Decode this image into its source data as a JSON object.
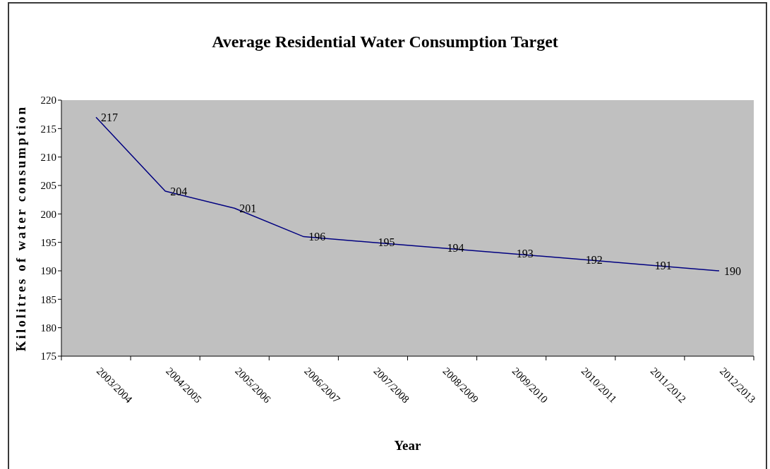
{
  "chart_data": {
    "type": "line",
    "title": "Average Residential Water Consumption Target",
    "xlabel": "Year",
    "ylabel": "Kilolitres of water consumption",
    "categories": [
      "2003/2004",
      "2004/2005",
      "2005/2006",
      "2006/2007",
      "2007/2008",
      "2008/2009",
      "2009/2010",
      "2010/2011",
      "2011/2012",
      "2012/2013"
    ],
    "values": [
      217,
      204,
      201,
      196,
      195,
      194,
      193,
      192,
      191,
      190
    ],
    "color": "#000080",
    "ylim": [
      175,
      220
    ],
    "yticks": [
      175,
      180,
      185,
      190,
      195,
      200,
      205,
      210,
      215,
      220
    ],
    "marker": "none",
    "data_labels": true
  }
}
